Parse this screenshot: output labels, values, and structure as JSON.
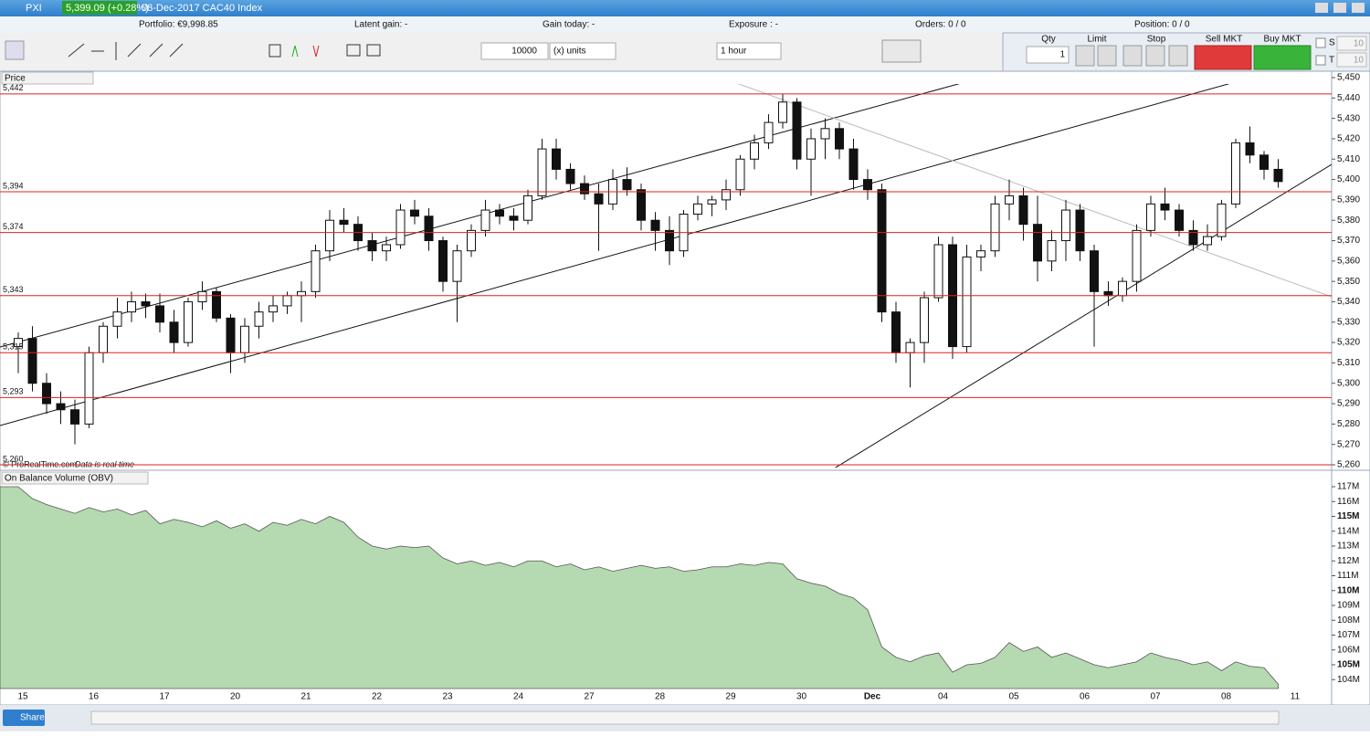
{
  "header": {
    "symbol": "PXI",
    "quote": "5,399.09 (+0.28%)",
    "instrument": "08-Dec-2017 CAC40 Index"
  },
  "stats": {
    "portfolio": "Portfolio: €9,998.85",
    "latent": "Latent gain: -",
    "gain": "Gain today: -",
    "exposure": "Exposure : -",
    "orders": "Orders: 0 / 0",
    "position": "Position: 0 / 0"
  },
  "toolbar": {
    "quantity": "10000",
    "units": "(x) units",
    "period": "1 hour"
  },
  "order_panel": {
    "qty_label": "Qty",
    "qty": "1",
    "limit": "Limit",
    "stop": "Stop",
    "sell": "Sell MKT",
    "buy": "Buy MKT",
    "s_label": "S",
    "s_value": "10",
    "t_label": "T",
    "t_value": "10"
  },
  "panels": {
    "price": "Price",
    "obv": "On Balance Volume (OBV)",
    "copyright": "© ProRealTime.com",
    "realtime": "Data is real time"
  },
  "footer": {
    "share": "Share"
  },
  "chart_data": [
    {
      "type": "candlestick",
      "axis_end_label": "11",
      "categories": [
        "15",
        null,
        null,
        null,
        null,
        "16",
        null,
        null,
        null,
        null,
        "17",
        null,
        null,
        null,
        null,
        "20",
        null,
        null,
        null,
        null,
        "21",
        null,
        null,
        null,
        null,
        "22",
        null,
        null,
        null,
        null,
        "23",
        null,
        null,
        null,
        null,
        "24",
        null,
        null,
        null,
        null,
        "27",
        null,
        null,
        null,
        null,
        "28",
        null,
        null,
        null,
        null,
        "29",
        null,
        null,
        null,
        null,
        "30",
        null,
        null,
        null,
        null,
        "Dec",
        null,
        null,
        null,
        null,
        "04",
        null,
        null,
        null,
        null,
        "05",
        null,
        null,
        null,
        null,
        "06",
        null,
        null,
        null,
        null,
        "07",
        null,
        null,
        null,
        null,
        "08",
        null,
        null,
        null,
        null
      ],
      "ohlc": [
        [
          5318,
          5325,
          5305,
          5322
        ],
        [
          5322,
          5328,
          5296,
          5300
        ],
        [
          5300,
          5305,
          5285,
          5290
        ],
        [
          5290,
          5296,
          5280,
          5287
        ],
        [
          5287,
          5292,
          5270,
          5280
        ],
        [
          5280,
          5318,
          5278,
          5315
        ],
        [
          5315,
          5330,
          5310,
          5328
        ],
        [
          5328,
          5342,
          5322,
          5335
        ],
        [
          5335,
          5345,
          5330,
          5340
        ],
        [
          5340,
          5344,
          5332,
          5338
        ],
        [
          5338,
          5344,
          5325,
          5330
        ],
        [
          5330,
          5336,
          5315,
          5320
        ],
        [
          5320,
          5342,
          5318,
          5340
        ],
        [
          5340,
          5350,
          5336,
          5345
        ],
        [
          5345,
          5347,
          5330,
          5332
        ],
        [
          5332,
          5334,
          5305,
          5315
        ],
        [
          5315,
          5332,
          5310,
          5328
        ],
        [
          5328,
          5340,
          5322,
          5335
        ],
        [
          5335,
          5343,
          5330,
          5338
        ],
        [
          5338,
          5345,
          5334,
          5343
        ],
        [
          5343,
          5350,
          5330,
          5345
        ],
        [
          5345,
          5368,
          5342,
          5365
        ],
        [
          5365,
          5385,
          5360,
          5380
        ],
        [
          5380,
          5386,
          5374,
          5378
        ],
        [
          5378,
          5382,
          5365,
          5370
        ],
        [
          5370,
          5374,
          5360,
          5365
        ],
        [
          5365,
          5372,
          5360,
          5368
        ],
        [
          5368,
          5388,
          5366,
          5385
        ],
        [
          5385,
          5390,
          5378,
          5382
        ],
        [
          5382,
          5386,
          5365,
          5370
        ],
        [
          5370,
          5372,
          5345,
          5350
        ],
        [
          5350,
          5368,
          5330,
          5365
        ],
        [
          5365,
          5378,
          5362,
          5375
        ],
        [
          5375,
          5390,
          5372,
          5385
        ],
        [
          5385,
          5388,
          5378,
          5382
        ],
        [
          5382,
          5386,
          5375,
          5380
        ],
        [
          5380,
          5395,
          5378,
          5392
        ],
        [
          5392,
          5420,
          5390,
          5415
        ],
        [
          5415,
          5420,
          5400,
          5405
        ],
        [
          5405,
          5408,
          5395,
          5398
        ],
        [
          5398,
          5402,
          5390,
          5393
        ],
        [
          5393,
          5398,
          5365,
          5388
        ],
        [
          5388,
          5405,
          5385,
          5400
        ],
        [
          5400,
          5406,
          5392,
          5395
        ],
        [
          5395,
          5398,
          5375,
          5380
        ],
        [
          5380,
          5384,
          5365,
          5375
        ],
        [
          5375,
          5382,
          5358,
          5365
        ],
        [
          5365,
          5385,
          5362,
          5383
        ],
        [
          5383,
          5392,
          5380,
          5388
        ],
        [
          5388,
          5392,
          5382,
          5390
        ],
        [
          5390,
          5400,
          5385,
          5395
        ],
        [
          5395,
          5412,
          5392,
          5410
        ],
        [
          5410,
          5422,
          5405,
          5418
        ],
        [
          5418,
          5432,
          5415,
          5428
        ],
        [
          5428,
          5442,
          5425,
          5438
        ],
        [
          5438,
          5440,
          5405,
          5410
        ],
        [
          5410,
          5425,
          5392,
          5420
        ],
        [
          5420,
          5430,
          5410,
          5425
        ],
        [
          5425,
          5428,
          5410,
          5415
        ],
        [
          5415,
          5420,
          5395,
          5400
        ],
        [
          5400,
          5405,
          5390,
          5395
        ],
        [
          5395,
          5398,
          5330,
          5335
        ],
        [
          5335,
          5340,
          5310,
          5315
        ],
        [
          5315,
          5322,
          5298,
          5320
        ],
        [
          5320,
          5345,
          5310,
          5342
        ],
        [
          5342,
          5372,
          5340,
          5368
        ],
        [
          5368,
          5372,
          5312,
          5318
        ],
        [
          5318,
          5368,
          5315,
          5362
        ],
        [
          5362,
          5368,
          5355,
          5365
        ],
        [
          5365,
          5392,
          5362,
          5388
        ],
        [
          5388,
          5400,
          5380,
          5392
        ],
        [
          5392,
          5396,
          5370,
          5378
        ],
        [
          5378,
          5392,
          5350,
          5360
        ],
        [
          5360,
          5375,
          5355,
          5370
        ],
        [
          5370,
          5390,
          5360,
          5385
        ],
        [
          5385,
          5388,
          5360,
          5365
        ],
        [
          5365,
          5368,
          5318,
          5345
        ],
        [
          5345,
          5350,
          5338,
          5343
        ],
        [
          5343,
          5352,
          5340,
          5350
        ],
        [
          5350,
          5378,
          5345,
          5375
        ],
        [
          5375,
          5392,
          5372,
          5388
        ],
        [
          5388,
          5396,
          5380,
          5385
        ],
        [
          5385,
          5388,
          5372,
          5375
        ],
        [
          5375,
          5380,
          5365,
          5368
        ],
        [
          5368,
          5378,
          5365,
          5372
        ],
        [
          5372,
          5390,
          5370,
          5388
        ],
        [
          5388,
          5420,
          5386,
          5418
        ],
        [
          5418,
          5426,
          5408,
          5412
        ],
        [
          5412,
          5414,
          5400,
          5405
        ],
        [
          5405,
          5410,
          5396,
          5399
        ]
      ],
      "up_color": "#ffffff",
      "down_color": "#111111",
      "level_color": "#e02020",
      "levels": [
        {
          "value": 5442,
          "label": "5,442"
        },
        {
          "value": 5394,
          "label": "5,394"
        },
        {
          "value": 5374,
          "label": "5,374"
        },
        {
          "value": 5343,
          "label": "5,343"
        },
        {
          "value": 5315,
          "label": "5,315"
        },
        {
          "value": 5293,
          "label": "5,293"
        },
        {
          "value": 5260,
          "label": "5,260"
        }
      ],
      "ylim": [
        5260,
        5450
      ],
      "yticks": [
        {
          "value": 5260,
          "label": "5,260"
        },
        {
          "value": 5270,
          "label": "5,270"
        },
        {
          "value": 5280,
          "label": "5,280"
        },
        {
          "value": 5290,
          "label": "5,290"
        },
        {
          "value": 5300,
          "label": "5,300"
        },
        {
          "value": 5310,
          "label": "5,310"
        },
        {
          "value": 5320,
          "label": "5,320"
        },
        {
          "value": 5330,
          "label": "5,330"
        },
        {
          "value": 5340,
          "label": "5,340"
        },
        {
          "value": 5350,
          "label": "5,350"
        },
        {
          "value": 5360,
          "label": "5,360"
        },
        {
          "value": 5370,
          "label": "5,370"
        },
        {
          "value": 5380,
          "label": "5,380"
        },
        {
          "value": 5390,
          "label": "5,390"
        },
        {
          "value": 5400,
          "label": "5,400"
        },
        {
          "value": 5410,
          "label": "5,410"
        },
        {
          "value": 5420,
          "label": "5,420"
        },
        {
          "value": 5430,
          "label": "5,430"
        },
        {
          "value": 5440,
          "label": "5,440"
        },
        {
          "value": 5450,
          "label": "5,450"
        }
      ]
    },
    {
      "type": "area",
      "color": "#b5d9b0",
      "values": [
        117,
        116.2,
        115.8,
        115.5,
        115.2,
        115.6,
        115.3,
        115.5,
        115.1,
        115.4,
        114.5,
        114.8,
        114.6,
        114.3,
        114.7,
        114.2,
        114.5,
        114.0,
        114.6,
        114.4,
        114.8,
        114.5,
        115.0,
        114.6,
        113.6,
        113.0,
        112.8,
        113.0,
        112.9,
        113.0,
        112.2,
        111.8,
        112.0,
        111.7,
        111.9,
        111.6,
        112.0,
        112.0,
        111.6,
        111.8,
        111.4,
        111.6,
        111.3,
        111.5,
        111.7,
        111.5,
        111.6,
        111.3,
        111.4,
        111.6,
        111.6,
        111.8,
        111.7,
        111.9,
        111.8,
        110.8,
        110.5,
        110.3,
        109.8,
        109.5,
        108.7,
        106.2,
        105.5,
        105.2,
        105.6,
        105.8,
        104.5,
        105.0,
        105.1,
        105.5,
        106.5,
        105.9,
        106.2,
        105.5,
        105.8,
        105.4,
        105.0,
        104.8,
        105.0,
        105.2,
        105.8,
        105.5,
        105.3,
        105.0,
        105.2,
        104.6,
        105.2,
        104.9,
        104.8,
        103.7
      ],
      "ylim": [
        103.4,
        117.8
      ],
      "yticks": [
        {
          "value": 104,
          "label": "104M"
        },
        {
          "value": 105,
          "label": "105M"
        },
        {
          "value": 106,
          "label": "106M"
        },
        {
          "value": 107,
          "label": "107M"
        },
        {
          "value": 108,
          "label": "108M"
        },
        {
          "value": 109,
          "label": "109M"
        },
        {
          "value": 110,
          "label": "110M"
        },
        {
          "value": 111,
          "label": "111M"
        },
        {
          "value": 112,
          "label": "112M"
        },
        {
          "value": 113,
          "label": "113M"
        },
        {
          "value": 114,
          "label": "114M"
        },
        {
          "value": 115,
          "label": "115M"
        },
        {
          "value": 116,
          "label": "116M"
        },
        {
          "value": 117,
          "label": "117M"
        }
      ]
    }
  ]
}
